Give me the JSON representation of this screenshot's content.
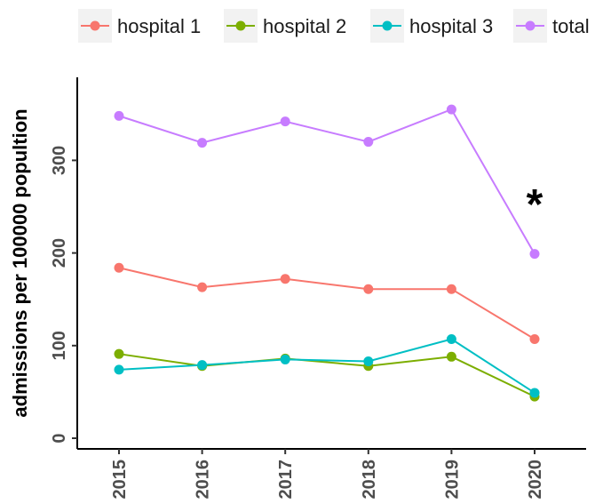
{
  "chart_data": {
    "type": "line",
    "x": [
      "2015",
      "2016",
      "2017",
      "2018",
      "2019",
      "2020"
    ],
    "series": [
      {
        "name": "hospital 1",
        "color": "#F8766D",
        "values": [
          184,
          163,
          172,
          161,
          161,
          107
        ]
      },
      {
        "name": "hospital 2",
        "color": "#7CAE00",
        "values": [
          91,
          78,
          86,
          78,
          88,
          45
        ]
      },
      {
        "name": "hospital 3",
        "color": "#00BFC4",
        "values": [
          74,
          79,
          85,
          83,
          107,
          49
        ]
      },
      {
        "name": "total",
        "color": "#C77CFF",
        "values": [
          348,
          319,
          342,
          320,
          355,
          199
        ]
      }
    ],
    "ylabel": "admissions per 100000 popultion",
    "y_ticks": [
      "0",
      "100",
      "200",
      "300"
    ],
    "ylim": [
      0,
      370
    ],
    "grid": false,
    "legend_position": "top",
    "annotations": [
      {
        "text": "*",
        "x": "2020"
      }
    ]
  }
}
